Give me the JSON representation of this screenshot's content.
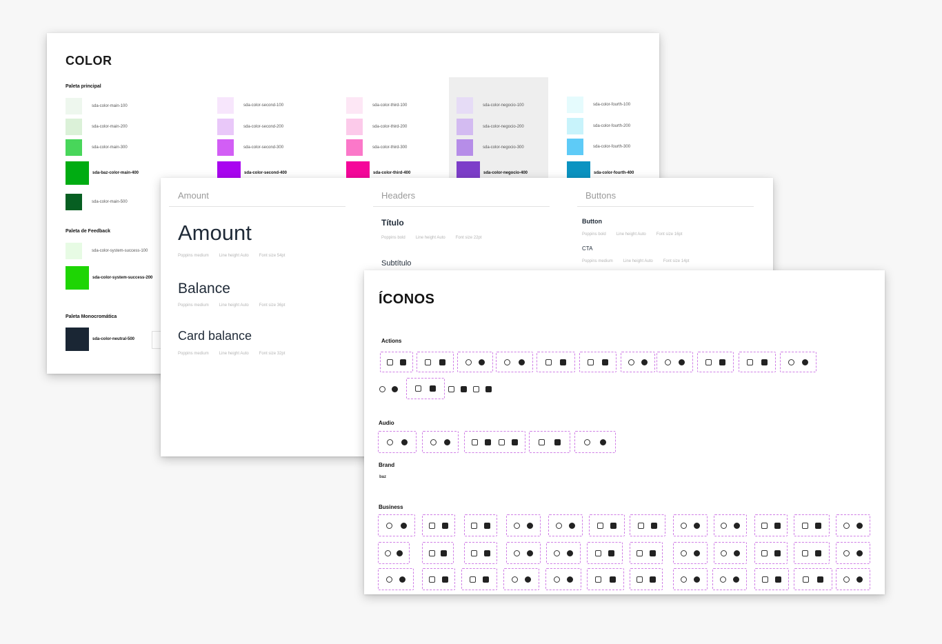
{
  "colors": {
    "title": "COLOR",
    "main_palette_label": "Paleta principal",
    "feedback_label": "Paleta de Feedback",
    "mono_label": "Paleta Monocromática",
    "main": [
      {
        "name": "sda-color-main-100",
        "hex": "#eef7ee"
      },
      {
        "name": "sda-color-main-200",
        "hex": "#dbf1d8"
      },
      {
        "name": "sda-color-main-300",
        "hex": "#48d65a"
      },
      {
        "name": "sda-baz-color-main-400",
        "hex": "#00ac12"
      },
      {
        "name": "sda-color-main-500",
        "hex": "#075f22"
      }
    ],
    "second": [
      {
        "name": "sda-color-second-100",
        "hex": "#f7e6fc"
      },
      {
        "name": "sda-color-second-200",
        "hex": "#e9c8f9"
      },
      {
        "name": "sda-color-second-300",
        "hex": "#d25ef5"
      },
      {
        "name": "sda-color-second-400",
        "hex": "#a905f0"
      }
    ],
    "third": [
      {
        "name": "sda-color-third-100",
        "hex": "#fde7f5"
      },
      {
        "name": "sda-color-third-200",
        "hex": "#fccaea"
      },
      {
        "name": "sda-color-third-300",
        "hex": "#fb78c9"
      },
      {
        "name": "sda-color-third-400",
        "hex": "#f5079a"
      }
    ],
    "negocio": [
      {
        "name": "sda-color-negocio-100",
        "hex": "#e6dcf6"
      },
      {
        "name": "sda-color-negocio-200",
        "hex": "#d3bbf1"
      },
      {
        "name": "sda-color-negocio-300",
        "hex": "#b68de8"
      },
      {
        "name": "sda-color-negocio-400",
        "hex": "#7d3ec9"
      }
    ],
    "fourth": [
      {
        "name": "sda-color-fourth-100",
        "hex": "#e5fbfd"
      },
      {
        "name": "sda-color-fourth-200",
        "hex": "#c8f3fb"
      },
      {
        "name": "sda-color-fourth-300",
        "hex": "#5ecbf7"
      },
      {
        "name": "sda-color-fourth-400",
        "hex": "#0b93c1"
      }
    ],
    "feedback": [
      {
        "name": "sda-color-system-success-100",
        "hex": "#e7fbe4"
      },
      {
        "name": "sda-color-system-success-200",
        "hex": "#1ed504"
      }
    ],
    "mono": [
      {
        "name": "sda-color-neutral-500",
        "hex": "#1a2634"
      }
    ]
  },
  "typography": {
    "columns": [
      "Amount",
      "Headers",
      "Buttons"
    ],
    "amount_items": [
      {
        "label": "Amount",
        "meta": [
          "Poppins medium",
          "Line height Auto",
          "Font size 54pt"
        ]
      },
      {
        "label": "Balance",
        "meta": [
          "Poppins medium",
          "Line height Auto",
          "Font size 36pt"
        ]
      },
      {
        "label": "Card balance",
        "meta": [
          "Poppins medium",
          "Line height Auto",
          "Font size 32pt"
        ]
      }
    ],
    "header_items": [
      {
        "label": "Título",
        "meta": [
          "Poppins bold",
          "Line height Auto",
          "Font size 22pt"
        ]
      },
      {
        "label": "Subtítulo",
        "meta": []
      }
    ],
    "button_items": [
      {
        "label": "Button",
        "meta": [
          "Poppins bold",
          "Line height Auto",
          "Font size 16pt"
        ]
      },
      {
        "label": "CTA",
        "meta": [
          "Poppins medium",
          "Line height Auto",
          "Font size 14pt"
        ]
      }
    ]
  },
  "icons": {
    "title": "ÍCONOS",
    "sections": {
      "actions": "Actions",
      "audio": "Audio",
      "brand": "Brand",
      "business": "Business"
    },
    "brand_name": "baz",
    "action_icons": [
      "bookmark-icon",
      "calendar-icon",
      "copy-icon",
      "delete-icon",
      "filter-icon",
      "share-arrow-icon",
      "print-icon",
      "trash-icon",
      "star-icon",
      "clock-icon",
      "eye-icon"
    ],
    "action_plain_icons": [
      "document-search-icon",
      "search-icon",
      "share-icon",
      "upload-icon",
      "download-icon",
      "fingerprint-icon",
      "external-link-icon",
      "refresh-icon"
    ],
    "audio_icons": [
      "record-icon",
      "microphone-icon",
      "volume-icon",
      "headphones-icon",
      "podcast-icon"
    ],
    "business_icons_count": 36
  }
}
